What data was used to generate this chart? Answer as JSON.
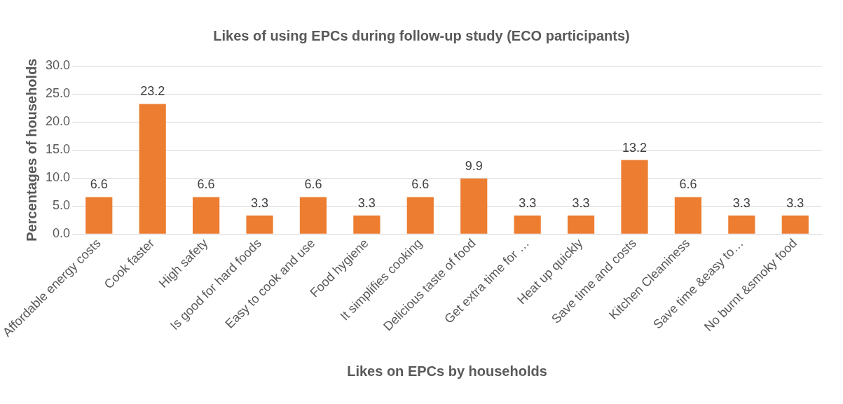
{
  "chart_data": {
    "type": "bar",
    "title": "Likes of using EPCs during follow-up study (ECO participants)",
    "xlabel": "Likes on EPCs by households",
    "ylabel": "Percentages of households",
    "categories": [
      "Affordable energy costs",
      "Cook faster",
      "High safety",
      "Is good for hard foods",
      "Easy to cook and use",
      "Food hygiene",
      "It simplifies cooking",
      "Delicious taste of food",
      "Get extra time for …",
      "Heat up quickly",
      "Save time and costs",
      "Kitchen Cleaniness",
      "Save time &easy to…",
      "No burnt &smoky food"
    ],
    "values": [
      6.6,
      23.2,
      6.6,
      3.3,
      6.6,
      3.3,
      6.6,
      9.9,
      3.3,
      3.3,
      13.2,
      6.6,
      3.3,
      3.3
    ],
    "color": "#ed7d31",
    "data_labels": true,
    "grid": "y",
    "legend": false,
    "ylim": [
      0,
      30
    ],
    "yticks": [
      {
        "value": 0,
        "label": "0.0"
      },
      {
        "value": 5,
        "label": "5.0"
      },
      {
        "value": 10,
        "label": "10.0"
      },
      {
        "value": 15,
        "label": "15.0"
      },
      {
        "value": 20,
        "label": "20.0"
      },
      {
        "value": 25,
        "label": "25.0"
      },
      {
        "value": 30,
        "label": "30.0"
      }
    ]
  }
}
